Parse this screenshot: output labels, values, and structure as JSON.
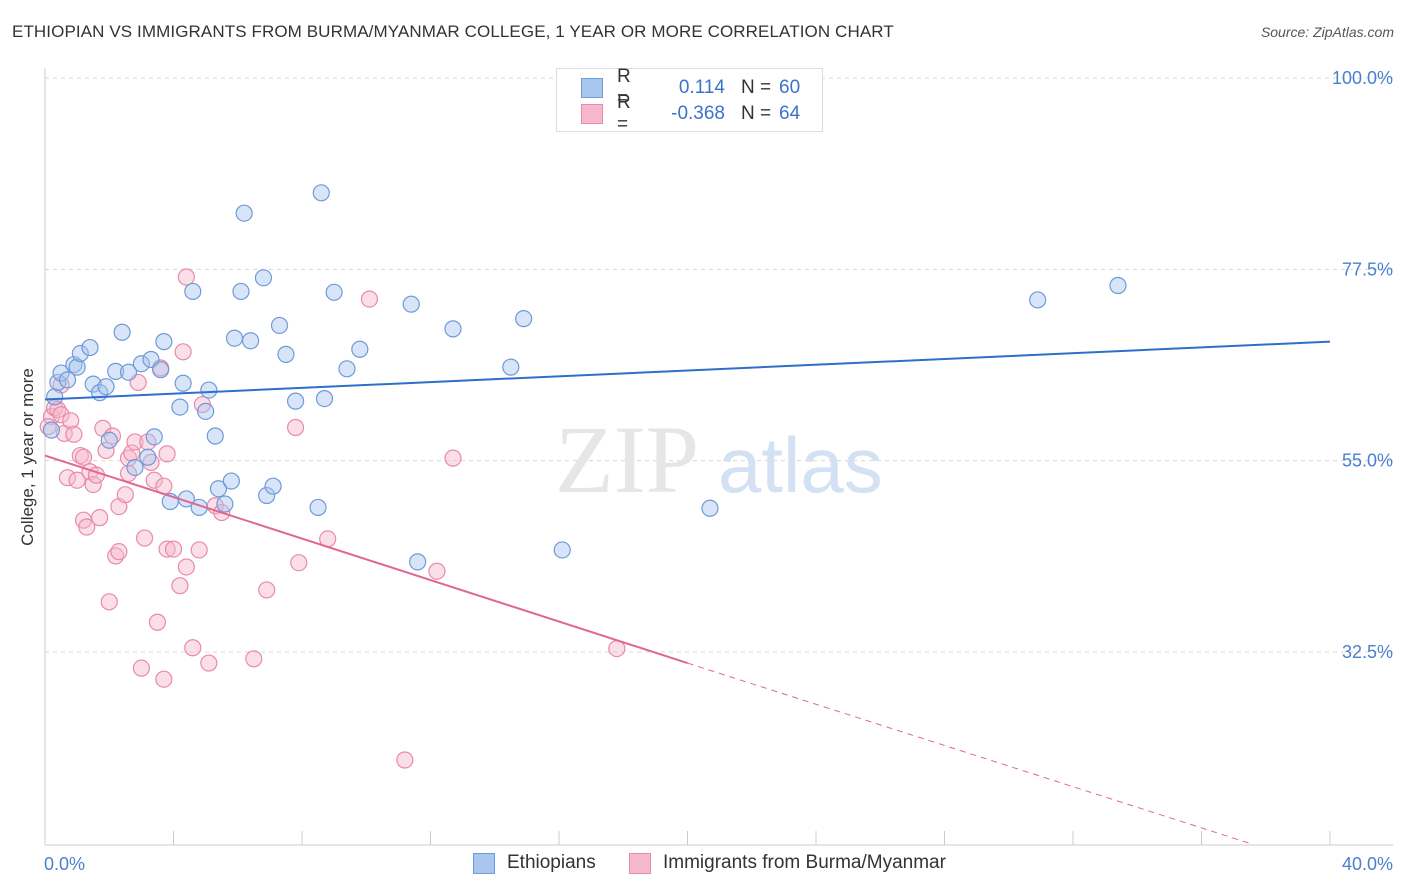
{
  "title": "ETHIOPIAN VS IMMIGRANTS FROM BURMA/MYANMAR COLLEGE, 1 YEAR OR MORE CORRELATION CHART",
  "source": "Source: ZipAtlas.com",
  "watermark": "ZIPatlas",
  "colors": {
    "blue_fill": "#a9c6ef",
    "blue_stroke": "#6f9ad8",
    "blue_line": "#2f6fcb",
    "pink_fill": "#f6b9cc",
    "pink_stroke": "#e88aa9",
    "pink_line": "#e06694",
    "tick_text": "#4a7fd0",
    "grid": "#d8d8d8"
  },
  "legend": {
    "rows": [
      {
        "r_label": "R =",
        "r_value": "0.114",
        "n_label": "N =",
        "n_value": "60"
      },
      {
        "r_label": "R =",
        "r_value": "-0.368",
        "n_label": "N =",
        "n_value": "64"
      }
    ]
  },
  "bottom_legend": {
    "series1": "Ethiopians",
    "series2": "Immigrants from Burma/Myanmar"
  },
  "chart_data": {
    "type": "scatter",
    "title": "ETHIOPIAN VS IMMIGRANTS FROM BURMA/MYANMAR COLLEGE, 1 YEAR OR MORE CORRELATION CHART",
    "xlabel": "",
    "ylabel": "College, 1 year or more",
    "xlim": [
      0,
      40
    ],
    "ylim": [
      10,
      102
    ],
    "x_tick_labels": [
      "0.0%",
      "40.0%"
    ],
    "y_ticks": [
      32.5,
      55.0,
      77.5,
      100.0
    ],
    "y_tick_labels": [
      "32.5%",
      "55.0%",
      "77.5%",
      "100.0%"
    ],
    "grid": true,
    "series": [
      {
        "name": "Ethiopians",
        "r": 0.114,
        "n": 60,
        "trend": {
          "x0": 0,
          "y0": 62.2,
          "x1": 40,
          "y1": 69.0
        },
        "points": [
          [
            0.2,
            58.6
          ],
          [
            0.3,
            62.5
          ],
          [
            0.4,
            64.2
          ],
          [
            0.5,
            65.3
          ],
          [
            0.7,
            64.5
          ],
          [
            0.9,
            66.3
          ],
          [
            1.0,
            66.0
          ],
          [
            1.1,
            67.6
          ],
          [
            1.4,
            68.3
          ],
          [
            1.5,
            64.0
          ],
          [
            1.7,
            63.0
          ],
          [
            1.9,
            63.7
          ],
          [
            2.0,
            57.4
          ],
          [
            2.2,
            65.5
          ],
          [
            2.4,
            70.1
          ],
          [
            2.6,
            65.4
          ],
          [
            2.8,
            54.2
          ],
          [
            3.0,
            66.4
          ],
          [
            3.2,
            55.4
          ],
          [
            3.3,
            66.9
          ],
          [
            3.4,
            57.8
          ],
          [
            3.6,
            65.7
          ],
          [
            3.7,
            69.0
          ],
          [
            3.9,
            50.2
          ],
          [
            4.2,
            61.3
          ],
          [
            4.3,
            64.1
          ],
          [
            4.4,
            50.5
          ],
          [
            4.6,
            74.9
          ],
          [
            4.8,
            49.5
          ],
          [
            5.0,
            60.8
          ],
          [
            5.1,
            63.3
          ],
          [
            5.3,
            57.9
          ],
          [
            5.4,
            51.7
          ],
          [
            5.6,
            49.9
          ],
          [
            5.8,
            52.6
          ],
          [
            5.9,
            69.4
          ],
          [
            6.1,
            74.9
          ],
          [
            6.2,
            84.1
          ],
          [
            6.4,
            69.1
          ],
          [
            6.8,
            76.5
          ],
          [
            6.9,
            50.9
          ],
          [
            7.1,
            52.0
          ],
          [
            7.3,
            70.9
          ],
          [
            7.5,
            67.5
          ],
          [
            7.8,
            62.0
          ],
          [
            8.5,
            49.5
          ],
          [
            8.6,
            86.5
          ],
          [
            8.7,
            62.3
          ],
          [
            9.0,
            74.8
          ],
          [
            9.4,
            65.8
          ],
          [
            9.8,
            68.1
          ],
          [
            11.4,
            73.4
          ],
          [
            11.6,
            43.1
          ],
          [
            12.7,
            70.5
          ],
          [
            14.5,
            66.0
          ],
          [
            14.9,
            71.7
          ],
          [
            16.1,
            44.5
          ],
          [
            20.7,
            49.4
          ],
          [
            30.9,
            73.9
          ],
          [
            33.4,
            75.6
          ]
        ]
      },
      {
        "name": "Immigrants from Burma/Myanmar",
        "r": -0.368,
        "n": 64,
        "trend": {
          "x0": 0,
          "y0": 55.6,
          "x1": 20.0,
          "y1": 31.2
        },
        "trend_dashed": {
          "x0": 20.0,
          "y0": 31.2,
          "x1": 37.5,
          "y1": 10.0
        },
        "points": [
          [
            0.2,
            60.2
          ],
          [
            0.3,
            61.2
          ],
          [
            0.4,
            61.0
          ],
          [
            0.5,
            63.9
          ],
          [
            0.5,
            60.4
          ],
          [
            0.6,
            58.2
          ],
          [
            0.7,
            53.0
          ],
          [
            0.8,
            59.7
          ],
          [
            0.9,
            58.1
          ],
          [
            1.0,
            52.7
          ],
          [
            1.1,
            55.6
          ],
          [
            1.2,
            55.4
          ],
          [
            1.2,
            48.0
          ],
          [
            1.4,
            53.7
          ],
          [
            1.5,
            52.2
          ],
          [
            1.6,
            53.3
          ],
          [
            1.7,
            48.3
          ],
          [
            1.8,
            58.8
          ],
          [
            1.9,
            56.2
          ],
          [
            2.0,
            38.4
          ],
          [
            2.1,
            57.9
          ],
          [
            2.2,
            43.8
          ],
          [
            2.3,
            49.6
          ],
          [
            2.3,
            44.3
          ],
          [
            2.5,
            51.0
          ],
          [
            2.6,
            55.3
          ],
          [
            2.7,
            55.9
          ],
          [
            2.8,
            57.2
          ],
          [
            2.9,
            64.2
          ],
          [
            3.0,
            30.6
          ],
          [
            3.1,
            45.9
          ],
          [
            3.2,
            57.2
          ],
          [
            3.3,
            54.8
          ],
          [
            3.4,
            52.7
          ],
          [
            3.5,
            36.0
          ],
          [
            3.6,
            65.9
          ],
          [
            3.7,
            29.3
          ],
          [
            3.8,
            55.8
          ],
          [
            3.8,
            44.6
          ],
          [
            4.0,
            44.6
          ],
          [
            4.2,
            40.3
          ],
          [
            4.3,
            67.8
          ],
          [
            4.4,
            42.5
          ],
          [
            4.4,
            76.6
          ],
          [
            4.6,
            33.0
          ],
          [
            4.8,
            44.5
          ],
          [
            4.9,
            61.6
          ],
          [
            5.1,
            31.2
          ],
          [
            5.3,
            49.7
          ],
          [
            6.5,
            31.7
          ],
          [
            6.9,
            39.8
          ],
          [
            7.8,
            58.9
          ],
          [
            7.9,
            43.0
          ],
          [
            8.8,
            45.8
          ],
          [
            10.1,
            74.0
          ],
          [
            11.2,
            19.8
          ],
          [
            12.2,
            42.0
          ],
          [
            12.7,
            55.3
          ],
          [
            17.8,
            32.9
          ],
          [
            5.5,
            48.9
          ],
          [
            2.6,
            53.5
          ],
          [
            1.3,
            47.2
          ],
          [
            3.7,
            52.0
          ],
          [
            0.1,
            59.0
          ]
        ]
      }
    ]
  }
}
